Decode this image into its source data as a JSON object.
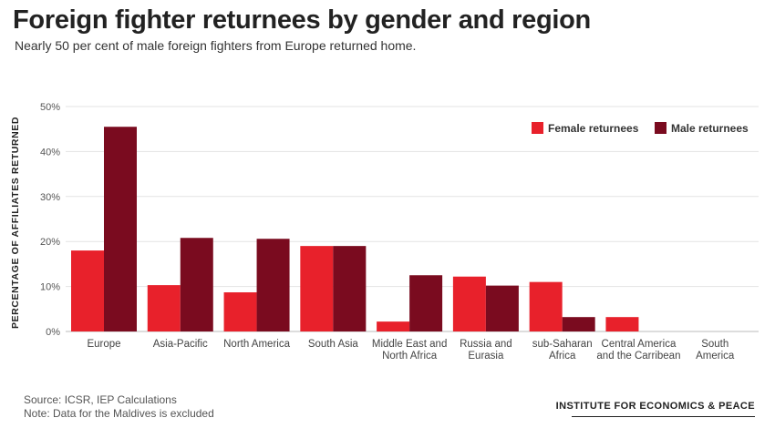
{
  "header": {
    "title": "Foreign fighter returnees by gender and region",
    "subtitle": "Nearly 50 per cent of male foreign fighters from Europe returned home."
  },
  "chart_data": {
    "type": "bar",
    "ylabel": "PERCENTAGE OF AFFILIATES RETURNED",
    "ylim": [
      0,
      50
    ],
    "yticks": [
      0,
      10,
      20,
      30,
      40,
      50
    ],
    "ytick_labels": [
      "0%",
      "10%",
      "20%",
      "30%",
      "40%",
      "50%"
    ],
    "grid": true,
    "legend_position": "top-right",
    "categories": [
      [
        "Europe"
      ],
      [
        "Asia-Pacific"
      ],
      [
        "North America"
      ],
      [
        "South Asia"
      ],
      [
        "Middle East and",
        "North Africa"
      ],
      [
        "Russia and",
        "Eurasia"
      ],
      [
        "sub-Saharan",
        "Africa"
      ],
      [
        "Central America",
        "and the Carribean"
      ],
      [
        "South",
        "America"
      ]
    ],
    "series": [
      {
        "name": "Female returnees",
        "color": "#e8212b",
        "values": [
          18.0,
          10.3,
          8.7,
          19.0,
          2.2,
          12.2,
          11.0,
          3.2,
          0
        ]
      },
      {
        "name": "Male returnees",
        "color": "#7a0b1f",
        "values": [
          45.5,
          20.8,
          20.6,
          19.0,
          12.5,
          10.2,
          3.2,
          0,
          0
        ]
      }
    ]
  },
  "footer": {
    "source": "Source: ICSR, IEP Calculations",
    "note": "Note: Data for the Maldives is excluded",
    "brand": "INSTITUTE FOR ECONOMICS & PEACE"
  }
}
